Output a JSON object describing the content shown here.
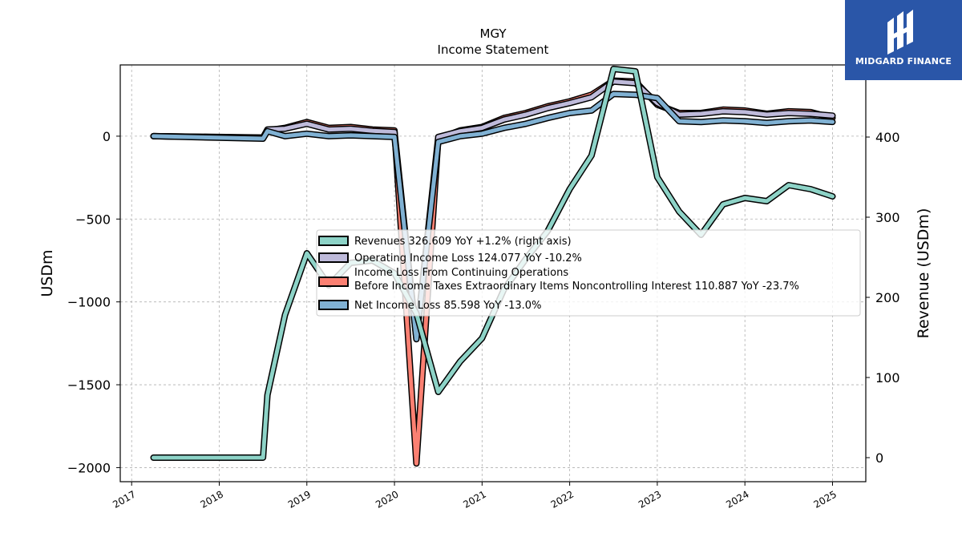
{
  "chart_data": {
    "type": "line",
    "title": "MGY",
    "subtitle": "Income Statement",
    "ylabel": "USDm",
    "ylabel_right": "Revenue (USDm)",
    "ylim": [
      -2085,
      430
    ],
    "ylim_right": [
      -30,
      490
    ],
    "yticks": [
      0,
      -500,
      -1000,
      -1500,
      -2000
    ],
    "ytick_labels": [
      "0",
      "−500",
      "−1000",
      "−1500",
      "−2000"
    ],
    "yticks_right": [
      0,
      100,
      200,
      300,
      400
    ],
    "ytick_labels_right": [
      "0",
      "100",
      "200",
      "300",
      "400"
    ],
    "xlim": [
      2016.87,
      2025.38
    ],
    "xticks": [
      2017,
      2018,
      2019,
      2020,
      2021,
      2022,
      2023,
      2024,
      2025
    ],
    "xtick_labels": [
      "2017",
      "2018",
      "2019",
      "2020",
      "2021",
      "2022",
      "2023",
      "2024",
      "2025"
    ],
    "grid": true,
    "legend_position": "center-right",
    "series": [
      {
        "name": "Revenues  326.609 YoY +1.2% (right axis)",
        "axis": "right",
        "color": "#8dd3c7",
        "x": [
          2017.25,
          2018.5,
          2018.55,
          2018.75,
          2019.0,
          2019.25,
          2019.5,
          2019.75,
          2020.0,
          2020.25,
          2020.5,
          2020.75,
          2021.0,
          2021.25,
          2021.5,
          2021.75,
          2022.0,
          2022.25,
          2022.5,
          2022.75,
          2023.0,
          2023.25,
          2023.5,
          2023.75,
          2024.0,
          2024.25,
          2024.5,
          2024.75,
          2025.0
        ],
        "values": [
          0,
          0,
          78,
          178,
          255,
          215,
          243,
          246,
          230,
          180,
          82,
          120,
          149,
          210,
          248,
          283,
          335,
          377,
          485,
          482,
          350,
          307,
          278,
          316,
          324,
          320,
          340,
          335,
          326
        ]
      },
      {
        "name": "Operating Income Loss  124.077 YoY -10.2%",
        "axis": "left",
        "color": "#bebada",
        "x": [
          2017.25,
          2018.5,
          2018.55,
          2018.75,
          2019.0,
          2019.25,
          2019.5,
          2019.75,
          2020.0,
          2020.25,
          2020.5,
          2020.75,
          2021.0,
          2021.25,
          2021.5,
          2021.75,
          2022.0,
          2022.25,
          2022.5,
          2022.75,
          2023.0,
          2023.25,
          2023.5,
          2023.75,
          2024.0,
          2024.25,
          2024.5,
          2024.75,
          2025.0
        ],
        "values": [
          0,
          -8,
          40,
          45,
          75,
          40,
          45,
          32,
          25,
          -1220,
          -5,
          30,
          50,
          100,
          130,
          170,
          200,
          235,
          330,
          320,
          200,
          130,
          135,
          150,
          145,
          130,
          140,
          135,
          124
        ]
      },
      {
        "name": "Income Loss From Continuing Operations Before Income Taxes Extraordinary Items Noncontrolling Interest  110.887 YoY -23.7%",
        "legend_lines": [
          "Income Loss From Continuing Operations",
          "Before Income Taxes Extraordinary Items Noncontrolling Interest  110.887 YoY -23.7%"
        ],
        "axis": "left",
        "color": "#fb8072",
        "x": [
          2017.25,
          2018.5,
          2018.55,
          2018.75,
          2019.0,
          2019.25,
          2019.5,
          2019.75,
          2020.0,
          2020.25,
          2020.5,
          2020.75,
          2021.0,
          2021.25,
          2021.5,
          2021.75,
          2022.0,
          2022.25,
          2022.5,
          2022.75,
          2023.0,
          2023.25,
          2023.5,
          2023.75,
          2024.0,
          2024.25,
          2024.5,
          2024.75,
          2025.0
        ],
        "values": [
          0,
          -10,
          35,
          50,
          85,
          50,
          55,
          40,
          35,
          -1975,
          -15,
          35,
          55,
          110,
          140,
          180,
          210,
          250,
          335,
          330,
          190,
          140,
          140,
          160,
          155,
          135,
          150,
          145,
          111
        ]
      },
      {
        "name": "Net Income Loss  85.598 YoY -13.0%",
        "axis": "left",
        "color": "#80b1d3",
        "x": [
          2017.25,
          2018.5,
          2018.55,
          2018.75,
          2019.0,
          2019.25,
          2019.5,
          2019.75,
          2020.0,
          2020.25,
          2020.5,
          2020.75,
          2021.0,
          2021.25,
          2021.5,
          2021.75,
          2022.0,
          2022.25,
          2022.5,
          2022.75,
          2023.0,
          2023.25,
          2023.5,
          2023.75,
          2024.0,
          2024.25,
          2024.5,
          2024.75,
          2025.0
        ],
        "values": [
          0,
          -15,
          30,
          0,
          15,
          0,
          5,
          0,
          -5,
          -1225,
          -35,
          0,
          15,
          50,
          75,
          110,
          140,
          155,
          255,
          250,
          230,
          90,
          85,
          95,
          90,
          80,
          90,
          95,
          86
        ]
      }
    ]
  },
  "logo": {
    "text": "MIDGARD FINANCE",
    "background": "#2a56a8"
  }
}
